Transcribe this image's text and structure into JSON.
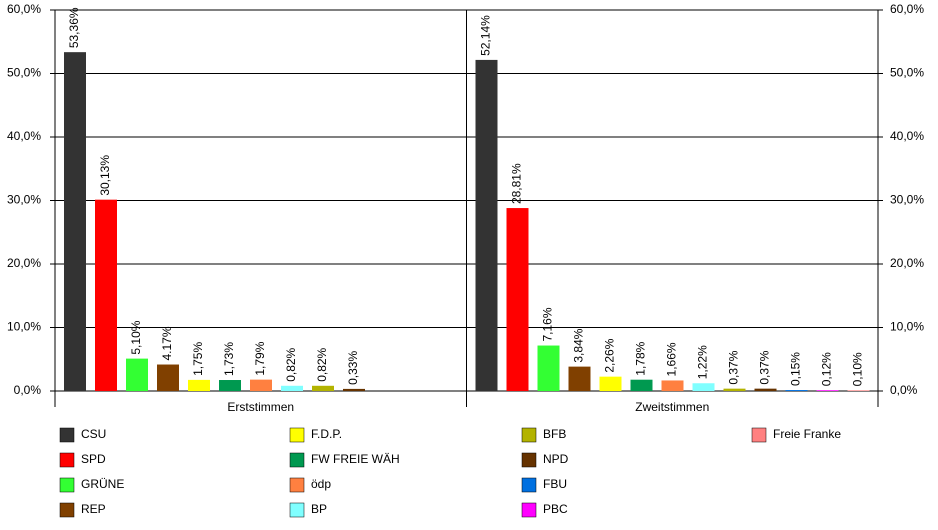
{
  "chart_data": {
    "type": "bar",
    "categories": [
      "Erststimmen",
      "Zweitstimmen"
    ],
    "series": [
      {
        "name": "CSU",
        "color": "#333333",
        "values": [
          53.36,
          52.14
        ],
        "value_labels": [
          "53,36%",
          "52,14%"
        ]
      },
      {
        "name": "SPD",
        "color": "#ff0000",
        "values": [
          30.13,
          28.81
        ],
        "value_labels": [
          "30,13%",
          "28,81%"
        ]
      },
      {
        "name": "GRÜNE",
        "color": "#33ff33",
        "values": [
          5.1,
          7.16
        ],
        "value_labels": [
          "5,10%",
          "7,16%"
        ]
      },
      {
        "name": "REP",
        "color": "#804000",
        "values": [
          4.17,
          3.84
        ],
        "value_labels": [
          "4.17%",
          "3,84%"
        ]
      },
      {
        "name": "F.D.P.",
        "color": "#ffff00",
        "values": [
          1.75,
          2.26
        ],
        "value_labels": [
          "1,75%",
          "2,26%"
        ]
      },
      {
        "name": "FW FREIE WÄH",
        "color": "#009950",
        "values": [
          1.73,
          1.78
        ],
        "value_labels": [
          "1,73%",
          "1,78%"
        ]
      },
      {
        "name": "ödp",
        "color": "#ff8040",
        "values": [
          1.79,
          1.66
        ],
        "value_labels": [
          "1,79%",
          "1,66%"
        ]
      },
      {
        "name": "BP",
        "color": "#80ffff",
        "values": [
          0.82,
          1.22
        ],
        "value_labels": [
          "0,82%",
          "1,22%"
        ]
      },
      {
        "name": "BFB",
        "color": "#b3b300",
        "values": [
          0.82,
          0.37
        ],
        "value_labels": [
          "0,82%",
          "0,37%"
        ]
      },
      {
        "name": "NPD",
        "color": "#663300",
        "values": [
          0.33,
          0.37
        ],
        "value_labels": [
          "0,33%",
          "0,37%"
        ]
      },
      {
        "name": "FBU",
        "color": "#0070e0",
        "values": [
          null,
          0.15
        ],
        "value_labels": [
          null,
          "0,15%"
        ]
      },
      {
        "name": "PBC",
        "color": "#ff00ff",
        "values": [
          null,
          0.12
        ],
        "value_labels": [
          null,
          "0,12%"
        ]
      },
      {
        "name": "Freie Franke",
        "color": "#ff8080",
        "values": [
          null,
          0.1
        ],
        "value_labels": [
          null,
          "0,10%"
        ]
      }
    ],
    "ylim": [
      0,
      60
    ],
    "yticks": [
      {
        "value": 0,
        "label": "0,0%"
      },
      {
        "value": 10,
        "label": "10,0%"
      },
      {
        "value": 20,
        "label": "20,0%"
      },
      {
        "value": 30,
        "label": "30,0%"
      },
      {
        "value": 40,
        "label": "40,0%"
      },
      {
        "value": 50,
        "label": "50,0%"
      },
      {
        "value": 60,
        "label": "60,0%"
      }
    ],
    "y2lim": [
      0,
      60
    ],
    "y2ticks": [
      {
        "value": 0,
        "label": "0,0%"
      },
      {
        "value": 10,
        "label": "10,0%"
      },
      {
        "value": 20,
        "label": "20,0%"
      },
      {
        "value": 30,
        "label": "30,0%"
      },
      {
        "value": 40,
        "label": "40,0%"
      },
      {
        "value": 50,
        "label": "50,0%"
      },
      {
        "value": 60,
        "label": "60,0%"
      }
    ],
    "grid": true
  }
}
